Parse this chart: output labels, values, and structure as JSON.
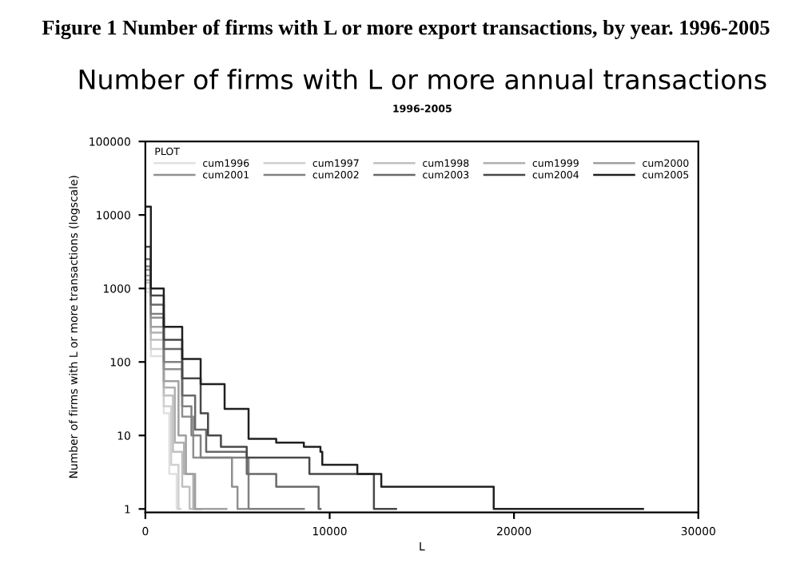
{
  "chart_data": {
    "type": "step",
    "title": "Number of firms with L or more annual transactions",
    "subtitle": "1996-2005",
    "xlabel": "L",
    "ylabel": "Number of firms with L or more transactions (logscale)",
    "legend_title": "PLOT",
    "annotations": [
      "Figure 1 Number of firms with L or more export transactions, by year. 1996-2005"
    ],
    "log": "y",
    "xlim": [
      0,
      30000
    ],
    "ylim": [
      0.9,
      100000
    ],
    "xticks": [
      0,
      10000,
      20000,
      30000
    ],
    "yticks": [
      1,
      10,
      100,
      1000,
      10000,
      100000
    ],
    "grid": false,
    "legend": "top",
    "line_style": "solid",
    "marker": "none",
    "series": [
      {
        "name": "cum1996",
        "color": "#e0e0e0",
        "x": [
          0,
          300,
          1000,
          1300,
          1700,
          1800
        ],
        "values": [
          900,
          120,
          20,
          3,
          1,
          1
        ]
      },
      {
        "name": "cum1997",
        "color": "#d0d0d0",
        "x": [
          0,
          300,
          1000,
          1400,
          1800,
          1900
        ],
        "values": [
          1000,
          150,
          25,
          4,
          1,
          1
        ]
      },
      {
        "name": "cum1998",
        "color": "#c0c0c0",
        "x": [
          0,
          300,
          1000,
          1500,
          2000,
          2400,
          2700
        ],
        "values": [
          1200,
          200,
          35,
          6,
          2,
          1,
          1
        ]
      },
      {
        "name": "cum1999",
        "color": "#b0b0b0",
        "x": [
          0,
          300,
          1000,
          1600,
          2100,
          2600,
          3000
        ],
        "values": [
          1300,
          250,
          45,
          8,
          3,
          1,
          1
        ]
      },
      {
        "name": "cum2000",
        "color": "#a0a0a0",
        "x": [
          0,
          300,
          1000,
          1800,
          2200,
          2700,
          4400
        ],
        "values": [
          1500,
          300,
          55,
          10,
          3,
          1,
          1
        ]
      },
      {
        "name": "cum2001",
        "color": "#909090",
        "x": [
          0,
          300,
          1000,
          2000,
          2600,
          4700,
          5000,
          5500
        ],
        "values": [
          1800,
          400,
          80,
          18,
          5,
          2,
          1,
          1
        ]
      },
      {
        "name": "cum2002",
        "color": "#808080",
        "x": [
          0,
          300,
          1000,
          2000,
          2500,
          3000,
          5600,
          8600
        ],
        "values": [
          2000,
          450,
          100,
          25,
          10,
          5,
          1,
          1
        ]
      },
      {
        "name": "cum2003",
        "color": "#686868",
        "x": [
          0,
          300,
          1000,
          2000,
          2700,
          3300,
          5500,
          7100,
          9400,
          9500
        ],
        "values": [
          2500,
          600,
          150,
          35,
          12,
          6,
          3,
          2,
          1,
          1
        ]
      },
      {
        "name": "cum2004",
        "color": "#484848",
        "x": [
          0,
          300,
          1000,
          2000,
          3000,
          3400,
          4100,
          5500,
          8900,
          12400,
          13600
        ],
        "values": [
          3700,
          800,
          200,
          60,
          20,
          10,
          7,
          5,
          3,
          1,
          1
        ]
      },
      {
        "name": "cum2005",
        "color": "#202020",
        "x": [
          0,
          300,
          1000,
          2000,
          3000,
          4300,
          5600,
          7100,
          8600,
          9500,
          9600,
          11500,
          12800,
          18900,
          27000
        ],
        "values": [
          13000,
          1000,
          300,
          110,
          50,
          23,
          9,
          8,
          7,
          6,
          4,
          3,
          2,
          1,
          1
        ]
      }
    ]
  }
}
